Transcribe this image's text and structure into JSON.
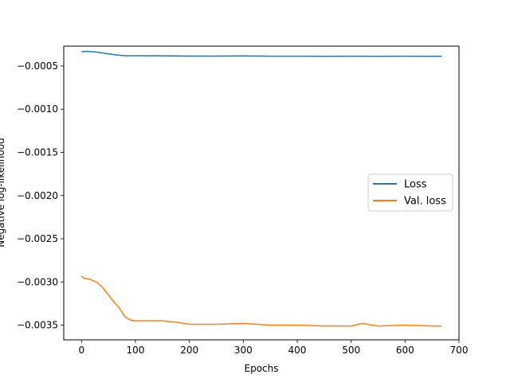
{
  "chart_data": {
    "type": "line",
    "xlabel": "Epochs",
    "ylabel": "Negative log-likelihood",
    "xlim": [
      -33,
      700
    ],
    "ylim": [
      -0.00367,
      -0.00027
    ],
    "x_ticks": [
      0,
      100,
      200,
      300,
      400,
      500,
      600,
      700
    ],
    "x_tick_labels": [
      "0",
      "100",
      "200",
      "300",
      "400",
      "500",
      "600",
      "700"
    ],
    "y_ticks": [
      -0.0005,
      -0.001,
      -0.0015,
      -0.002,
      -0.0025,
      -0.003,
      -0.0035
    ],
    "y_tick_labels": [
      "−0.0005",
      "−0.0010",
      "−0.0015",
      "−0.0020",
      "−0.0025",
      "−0.0030",
      "−0.0035"
    ],
    "grid": false,
    "legend_position": "center-right",
    "series": [
      {
        "name": "Loss",
        "color": "#1f77b4",
        "x": [
          0,
          10,
          20,
          30,
          40,
          50,
          60,
          70,
          80,
          100,
          150,
          200,
          250,
          300,
          350,
          400,
          450,
          500,
          550,
          600,
          650,
          668
        ],
        "values": [
          -0.000335,
          -0.00033,
          -0.000335,
          -0.00034,
          -0.00035,
          -0.00036,
          -0.000368,
          -0.000375,
          -0.00038,
          -0.00038,
          -0.000382,
          -0.000385,
          -0.000385,
          -0.000383,
          -0.000386,
          -0.000386,
          -0.000387,
          -0.000386,
          -0.000387,
          -0.000386,
          -0.000387,
          -0.000388
        ]
      },
      {
        "name": "Val. loss",
        "color": "#ff7f0e",
        "x": [
          0,
          5,
          10,
          20,
          30,
          40,
          50,
          60,
          70,
          80,
          90,
          100,
          120,
          150,
          180,
          200,
          250,
          300,
          350,
          400,
          450,
          500,
          520,
          550,
          600,
          650,
          668
        ],
        "values": [
          -0.00293,
          -0.00296,
          -0.00296,
          -0.00298,
          -0.00301,
          -0.00307,
          -0.00315,
          -0.00323,
          -0.0033,
          -0.0034,
          -0.00344,
          -0.00345,
          -0.00345,
          -0.00345,
          -0.00347,
          -0.00349,
          -0.00349,
          -0.00348,
          -0.0035,
          -0.0035,
          -0.00351,
          -0.00351,
          -0.00348,
          -0.00351,
          -0.0035,
          -0.00351,
          -0.00351
        ]
      }
    ]
  }
}
